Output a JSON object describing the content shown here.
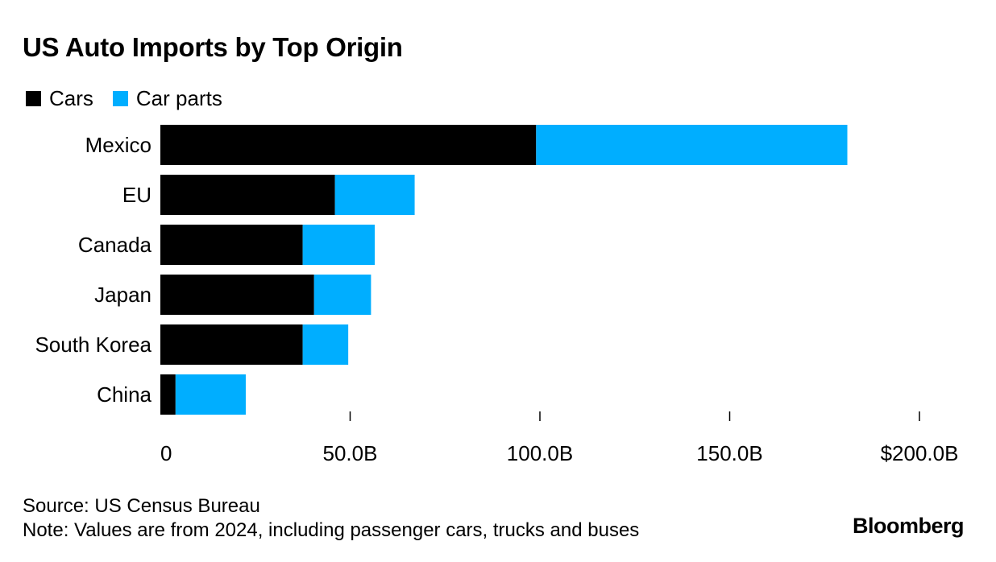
{
  "header": {
    "title": "US Auto Imports by Top Origin"
  },
  "legend": {
    "items": [
      {
        "label": "Cars",
        "color": "#000000"
      },
      {
        "label": "Car parts",
        "color": "#00aeff"
      }
    ]
  },
  "footer": {
    "source": "Source: US Census Bureau",
    "note": "Note: Values are from 2024, including passenger cars, trucks and buses",
    "brand": "Bloomberg"
  },
  "chart_data": {
    "type": "bar",
    "orientation": "horizontal",
    "stacked": true,
    "title": "US Auto Imports by Top Origin",
    "categories": [
      "Mexico",
      "EU",
      "Canada",
      "Japan",
      "South Korea",
      "China"
    ],
    "series": [
      {
        "name": "Cars",
        "color": "#000000",
        "values": [
          99,
          46,
          37.5,
          40.5,
          37.5,
          4
        ]
      },
      {
        "name": "Car parts",
        "color": "#00aeff",
        "values": [
          82,
          21,
          19,
          15,
          12,
          18.5
        ]
      }
    ],
    "xlim": [
      0,
      200
    ],
    "xticks": [
      0,
      50,
      100,
      150,
      200
    ],
    "xtick_labels": [
      "0",
      "50.0B",
      "100.0B",
      "150.0B",
      "$200.0B"
    ],
    "xlabel": "",
    "ylabel": "",
    "grid": false,
    "legend_position": "top-left"
  }
}
